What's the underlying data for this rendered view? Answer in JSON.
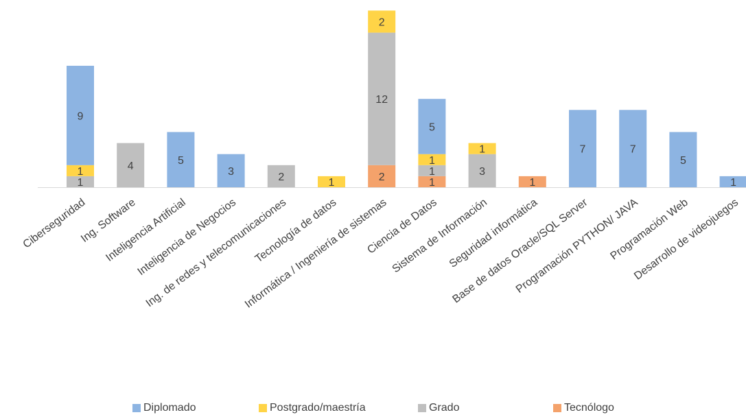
{
  "chart_data": {
    "type": "bar",
    "stacked": true,
    "title": "",
    "xlabel": "",
    "ylabel": "",
    "ylim": [
      0,
      16
    ],
    "grid": false,
    "legend_position": "bottom",
    "categories": [
      "Ciberseguridad",
      "Ing. Software",
      "Inteligencia Artificial",
      "Inteligencia de Negocios",
      "Ing. de redes y telecomunicaciones",
      "Tecnología de datos",
      "Informática / Ingeniería de sistemas",
      "Ciencia de Datos",
      "Sistema de Información",
      "Seguridad informática",
      "Base de datos Oracle/SQL Server",
      "Programación PYTHON/ JAVA",
      "Programación Web",
      "Desarrollo de videojuegos"
    ],
    "series": [
      {
        "name": "Tecnólogo",
        "color": "#F4A26B",
        "values": [
          0,
          0,
          0,
          0,
          0,
          0,
          2,
          1,
          0,
          1,
          0,
          0,
          0,
          0
        ]
      },
      {
        "name": "Grado",
        "color": "#BFBFBF",
        "values": [
          1,
          4,
          0,
          0,
          2,
          0,
          12,
          1,
          3,
          0,
          0,
          0,
          0,
          0
        ]
      },
      {
        "name": "Postgrado/maestría",
        "color": "#FFD447",
        "values": [
          1,
          0,
          0,
          0,
          0,
          1,
          2,
          1,
          1,
          0,
          0,
          0,
          0,
          0
        ]
      },
      {
        "name": "Diplomado",
        "color": "#8DB4E2",
        "values": [
          9,
          0,
          5,
          3,
          0,
          0,
          0,
          5,
          0,
          0,
          7,
          7,
          5,
          1
        ]
      }
    ],
    "legend_order": [
      "Diplomado",
      "Postgrado/maestría",
      "Grado",
      "Tecnólogo"
    ]
  }
}
